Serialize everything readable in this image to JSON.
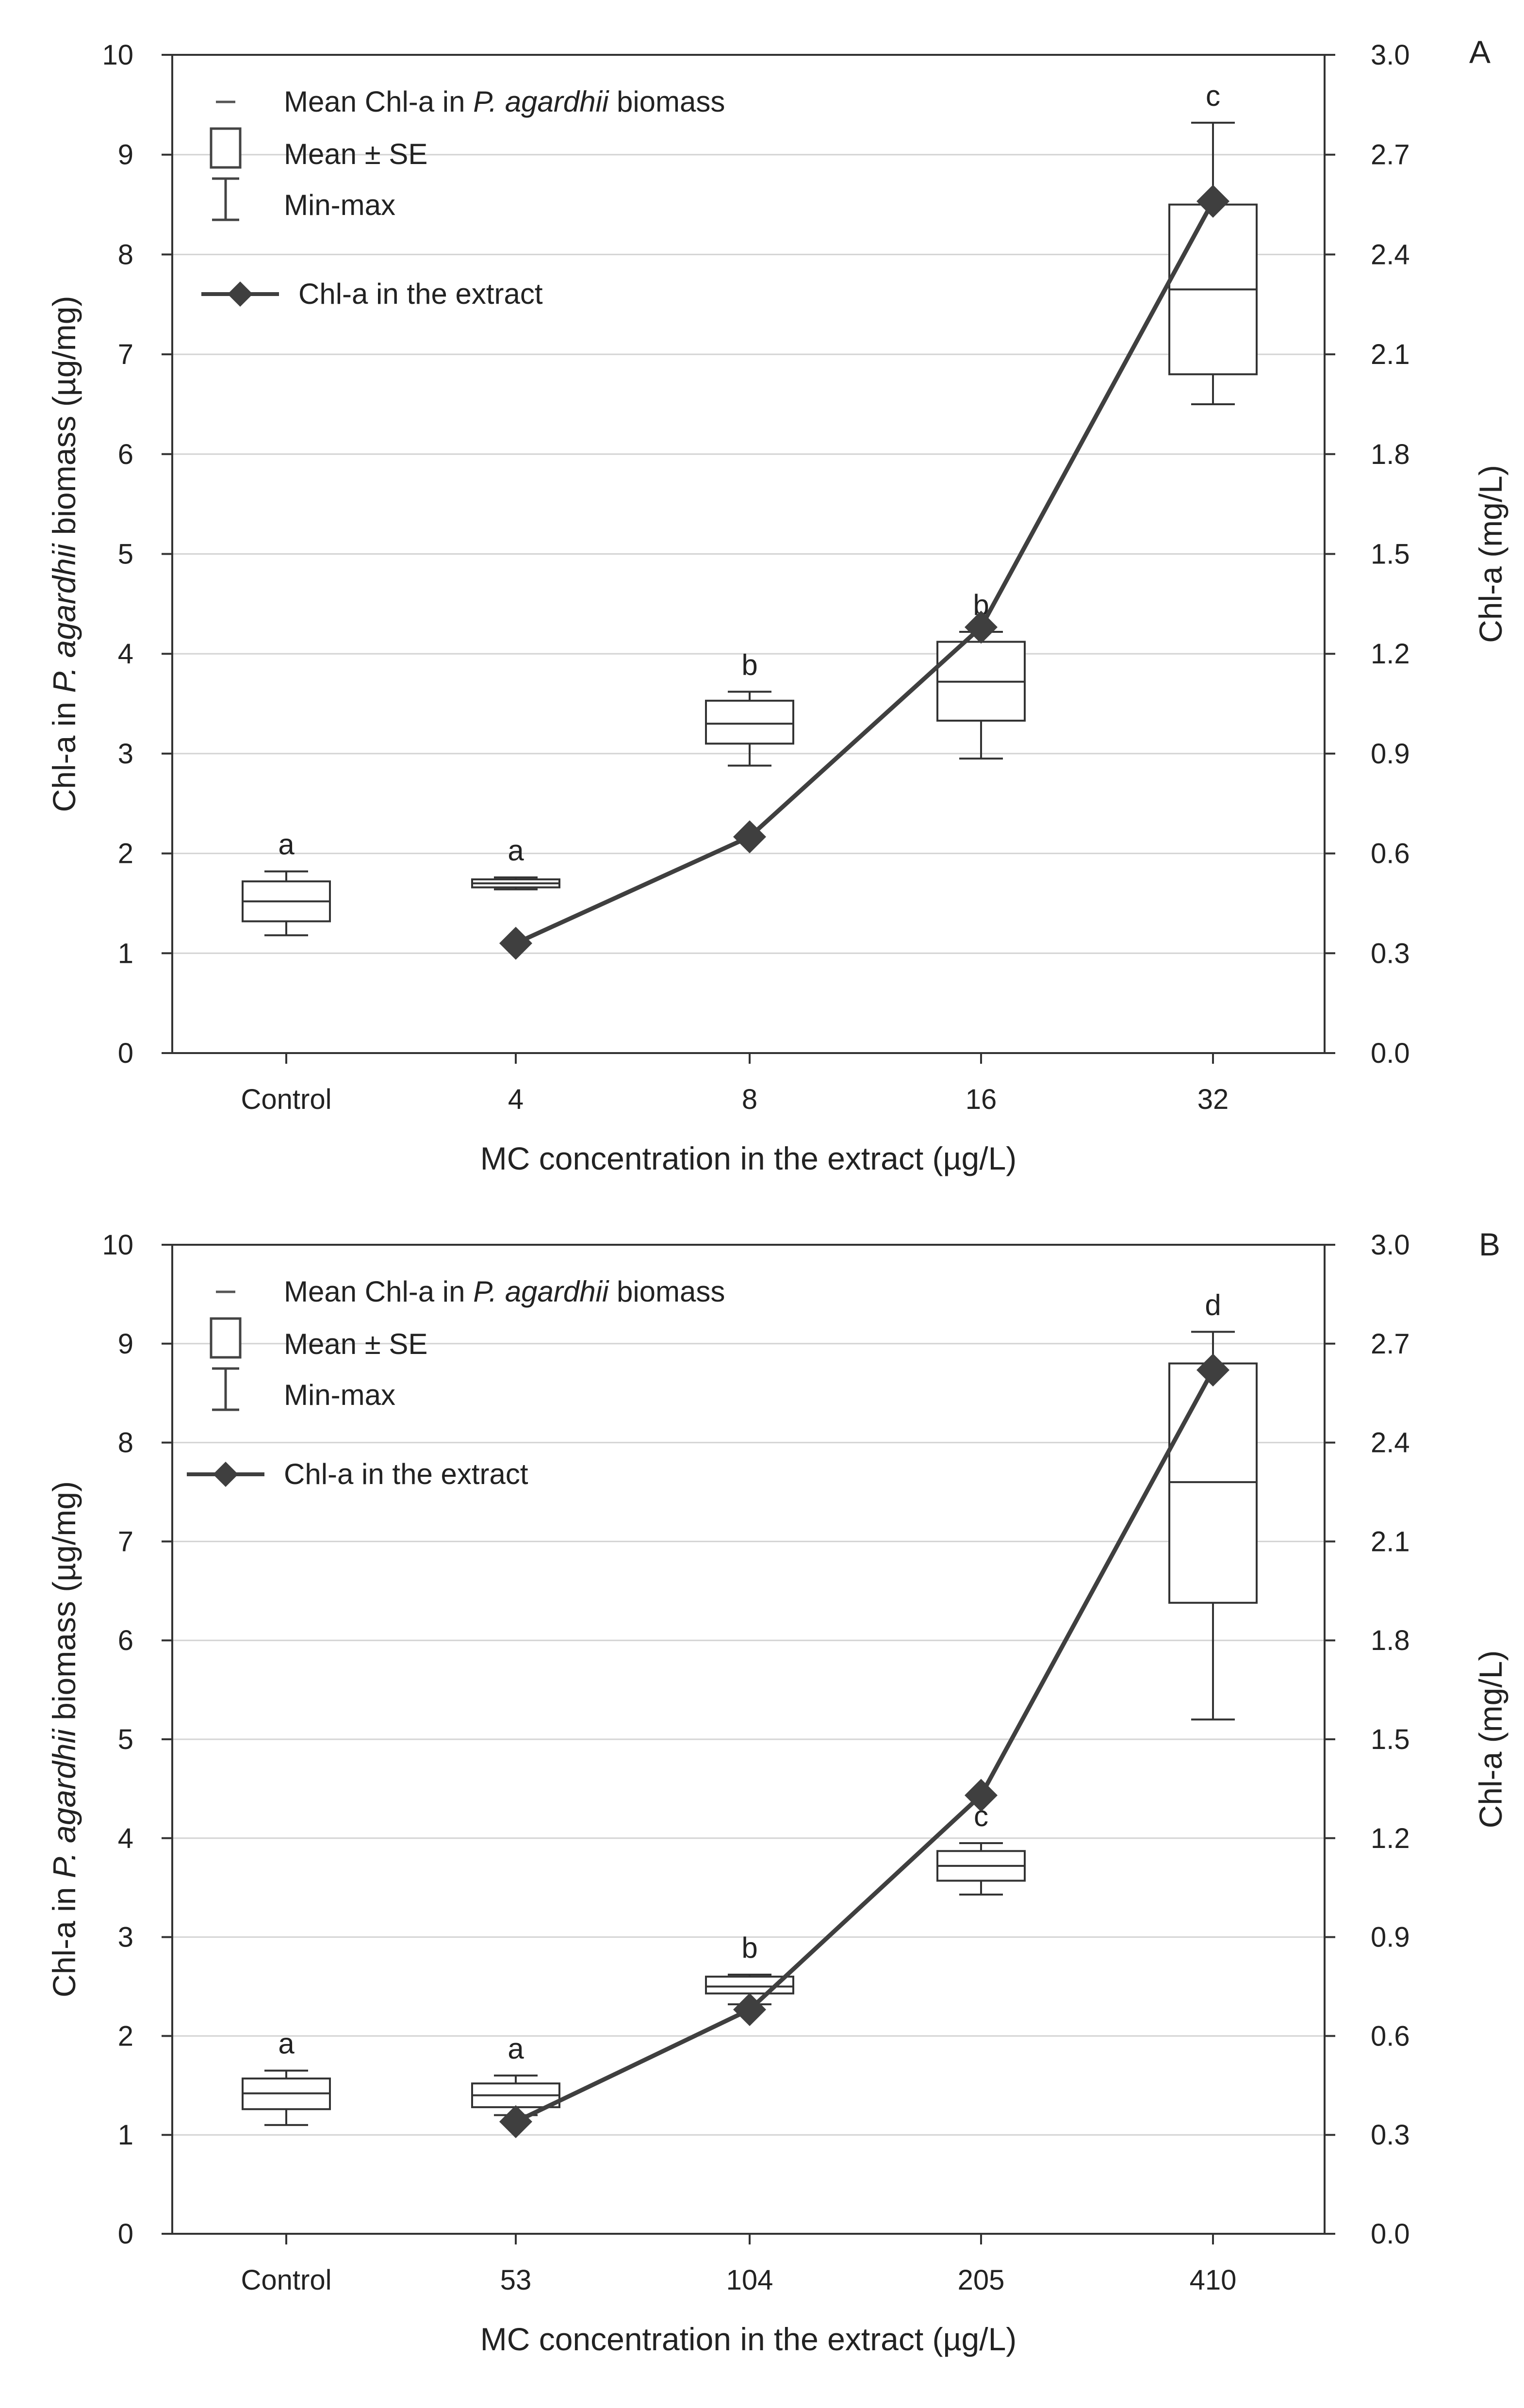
{
  "chart_data": [
    {
      "type": "box+line",
      "panel": "A",
      "categories": [
        "Control",
        "4",
        "8",
        "16",
        "32"
      ],
      "xlabel": "MC concentration in the extract (µg/L)",
      "ylabel_left": {
        "prefix": "Chl-a in ",
        "italic": "P. agardhii",
        "suffix": " biomass (µg/mg)"
      },
      "ylabel_right": "Chl-a (mg/L)",
      "ylim_left": [
        0,
        10
      ],
      "yticks_left": [
        "0",
        "1",
        "2",
        "3",
        "4",
        "5",
        "6",
        "7",
        "8",
        "9",
        "10"
      ],
      "ylim_right": [
        0,
        3.0
      ],
      "yticks_right": [
        "0.0",
        "0.3",
        "0.6",
        "0.9",
        "1.2",
        "1.5",
        "1.8",
        "2.1",
        "2.4",
        "2.7",
        "3.0"
      ],
      "grid": true,
      "legend": {
        "mean": {
          "prefix": "Mean Chl-a in ",
          "italic": "P. agardhii",
          "suffix": " biomass"
        },
        "se": "Mean ± SE",
        "minmax": "Min-max",
        "line": "Chl-a in the extract"
      },
      "boxes": [
        {
          "category": "Control",
          "mean": 1.52,
          "se_low": 1.32,
          "se_high": 1.72,
          "min": 1.18,
          "max": 1.82,
          "letter": "a"
        },
        {
          "category": "4",
          "mean": 1.7,
          "se_low": 1.66,
          "se_high": 1.74,
          "min": 1.64,
          "max": 1.76,
          "letter": "a"
        },
        {
          "category": "8",
          "mean": 3.3,
          "se_low": 3.1,
          "se_high": 3.53,
          "min": 2.88,
          "max": 3.62,
          "letter": "b"
        },
        {
          "category": "16",
          "mean": 3.72,
          "se_low": 3.33,
          "se_high": 4.12,
          "min": 2.95,
          "max": 4.22,
          "letter": "b"
        },
        {
          "category": "32",
          "mean": 7.65,
          "se_low": 6.8,
          "se_high": 8.5,
          "min": 6.5,
          "max": 9.32,
          "letter": "c"
        }
      ],
      "line_series": {
        "name": "Chl-a in the extract",
        "categories": [
          "4",
          "8",
          "16",
          "32"
        ],
        "values": [
          0.33,
          0.65,
          1.28,
          2.56
        ]
      }
    },
    {
      "type": "box+line",
      "panel": "B",
      "categories": [
        "Control",
        "53",
        "104",
        "205",
        "410"
      ],
      "xlabel": "MC concentration in the extract (µg/L)",
      "ylabel_left": {
        "prefix": "Chl-a in ",
        "italic": "P. agardhii",
        "suffix": " biomass (µg/mg)"
      },
      "ylabel_right": "Chl-a (mg/L)",
      "ylim_left": [
        0,
        10
      ],
      "yticks_left": [
        "0",
        "1",
        "2",
        "3",
        "4",
        "5",
        "6",
        "7",
        "8",
        "9",
        "10"
      ],
      "ylim_right": [
        0,
        3.0
      ],
      "yticks_right": [
        "0.0",
        "0.3",
        "0.6",
        "0.9",
        "1.2",
        "1.5",
        "1.8",
        "2.1",
        "2.4",
        "2.7",
        "3.0"
      ],
      "grid": true,
      "legend": {
        "mean": {
          "prefix": "Mean Chl-a in ",
          "italic": "P. agardhii",
          "suffix": " biomass"
        },
        "se": "Mean ± SE",
        "minmax": "Min-max",
        "line": "Chl-a in the extract"
      },
      "boxes": [
        {
          "category": "Control",
          "mean": 1.42,
          "se_low": 1.26,
          "se_high": 1.57,
          "min": 1.1,
          "max": 1.65,
          "letter": "a"
        },
        {
          "category": "53",
          "mean": 1.4,
          "se_low": 1.28,
          "se_high": 1.52,
          "min": 1.2,
          "max": 1.6,
          "letter": "a"
        },
        {
          "category": "104",
          "mean": 2.5,
          "se_low": 2.43,
          "se_high": 2.6,
          "min": 2.32,
          "max": 2.62,
          "letter": "b"
        },
        {
          "category": "205",
          "mean": 3.72,
          "se_low": 3.57,
          "se_high": 3.87,
          "min": 3.43,
          "max": 3.95,
          "letter": "c"
        },
        {
          "category": "410",
          "mean": 7.6,
          "se_low": 6.38,
          "se_high": 8.8,
          "min": 5.2,
          "max": 9.12,
          "letter": "d"
        }
      ],
      "line_series": {
        "name": "Chl-a in the extract",
        "categories": [
          "53",
          "104",
          "205",
          "410"
        ],
        "values": [
          0.34,
          0.68,
          1.33,
          2.62
        ]
      }
    }
  ]
}
